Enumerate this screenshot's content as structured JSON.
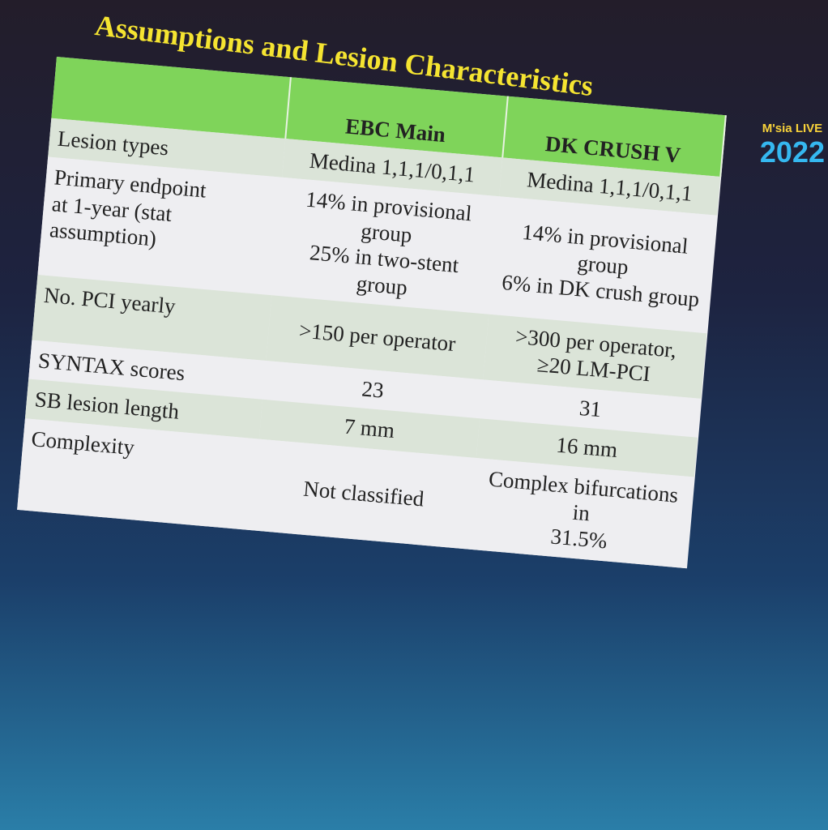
{
  "title": "Assumptions and Lesion Characteristics",
  "logo": {
    "name": "M'sia LIVE",
    "year": "2022"
  },
  "table": {
    "header": [
      "EBC Main",
      "DK CRUSH V"
    ],
    "rows": [
      {
        "label": [
          "Lesion types"
        ],
        "cells": [
          [
            "Medina 1,1,1/0,1,1"
          ],
          [
            "Medina 1,1,1/0,1,1"
          ]
        ]
      },
      {
        "label": [
          "Primary endpoint",
          "at 1-year (stat",
          "assumption)"
        ],
        "cells": [
          [
            "14% in provisional group",
            "25% in two-stent group"
          ],
          [
            "14% in provisional group",
            "6% in DK crush group"
          ]
        ]
      },
      {
        "label": [
          "No. PCI yearly"
        ],
        "cells": [
          [
            ">150 per operator"
          ],
          [
            ">300 per operator,",
            "≥20 LM-PCI"
          ]
        ]
      },
      {
        "label": [
          "SYNTAX scores"
        ],
        "cells": [
          [
            23
          ],
          [
            31
          ]
        ]
      },
      {
        "label": [
          "SB lesion length"
        ],
        "cells": [
          [
            "7 mm"
          ],
          [
            "16 mm"
          ]
        ]
      },
      {
        "label": [
          "Complexity"
        ],
        "cells": [
          [
            "Not classified"
          ],
          [
            "Complex bifurcations in",
            "31.5%"
          ]
        ]
      }
    ]
  }
}
